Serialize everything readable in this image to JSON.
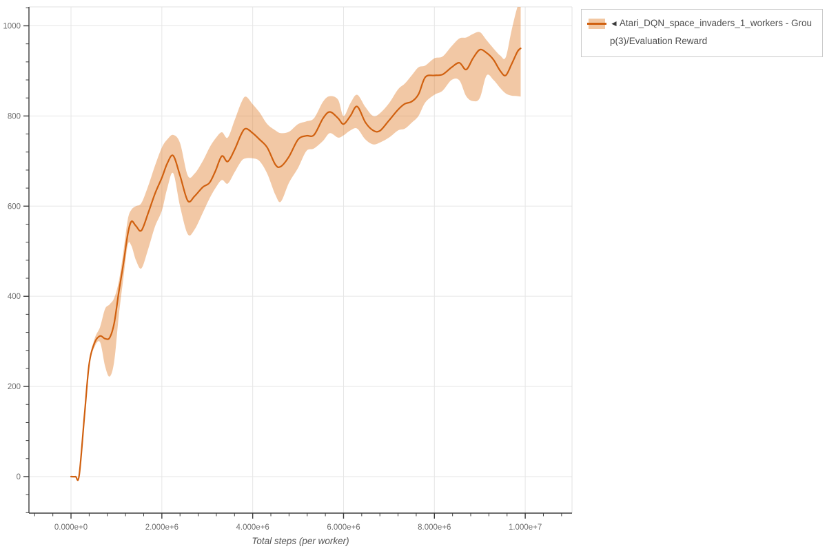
{
  "page": {
    "background": "#ffffff"
  },
  "legend": {
    "marker_icon": "◄",
    "label": "Atari_DQN_space_invaders_1_workers - Group(3)/Evaluation Reward",
    "band_color": "#f2c7a2",
    "line_color": "#d0600f",
    "border_color": "#c9c9c9"
  },
  "chart_data": {
    "type": "line",
    "title": "",
    "xlabel": "Total steps (per worker)",
    "ylabel": "",
    "grid": true,
    "legend_position": "top-right",
    "x_range": [
      -926000,
      11030000
    ],
    "y_range": [
      -81,
      1042
    ],
    "x_ticks": {
      "values": [
        0,
        2000000,
        4000000,
        6000000,
        8000000,
        10000000
      ],
      "labels": [
        "0.000e+0",
        "2.000e+6",
        "4.000e+6",
        "6.000e+6",
        "8.000e+6",
        "1.000e+7"
      ]
    },
    "x_minor_step": 400000,
    "y_ticks": {
      "values": [
        0,
        200,
        400,
        600,
        800,
        1000
      ],
      "labels": [
        "0",
        "200",
        "400",
        "600",
        "800",
        "1000"
      ]
    },
    "y_minor_step": 40,
    "colors": {
      "gridline": "#e6e6e6",
      "plot_border": "#e0e0e0",
      "axis": "#3b3b3b",
      "tick_label": "#6e6e6e",
      "axis_title": "#555555"
    },
    "series": [
      {
        "name": "Atari_DQN_space_invaders_1_workers - Group(3)/Evaluation Reward",
        "line_color": "#d0600f",
        "band_fill": "#e07b28",
        "band_opacity": 0.42,
        "points_format": [
          "step",
          "mean",
          "lo",
          "hi"
        ],
        "points": [
          [
            0,
            0,
            0,
            0
          ],
          [
            100000,
            0,
            0,
            0
          ],
          [
            180000,
            3,
            3,
            3
          ],
          [
            300000,
            140,
            140,
            140
          ],
          [
            400000,
            250,
            246,
            254
          ],
          [
            520000,
            297,
            288,
            306
          ],
          [
            640000,
            312,
            298,
            332
          ],
          [
            750000,
            306,
            245,
            372
          ],
          [
            850000,
            308,
            222,
            382
          ],
          [
            950000,
            340,
            255,
            396
          ],
          [
            1050000,
            408,
            355,
            432
          ],
          [
            1150000,
            470,
            438,
            496
          ],
          [
            1250000,
            538,
            514,
            570
          ],
          [
            1330000,
            566,
            512,
            592
          ],
          [
            1430000,
            556,
            480,
            600
          ],
          [
            1550000,
            546,
            462,
            607
          ],
          [
            1700000,
            585,
            505,
            645
          ],
          [
            1850000,
            628,
            555,
            690
          ],
          [
            2000000,
            663,
            590,
            730
          ],
          [
            2120000,
            695,
            640,
            748
          ],
          [
            2250000,
            712,
            673,
            758
          ],
          [
            2400000,
            668,
            600,
            740
          ],
          [
            2570000,
            612,
            538,
            668
          ],
          [
            2720000,
            622,
            548,
            672
          ],
          [
            2900000,
            642,
            585,
            700
          ],
          [
            3050000,
            652,
            617,
            730
          ],
          [
            3180000,
            678,
            640,
            750
          ],
          [
            3320000,
            711,
            658,
            764
          ],
          [
            3450000,
            699,
            650,
            752
          ],
          [
            3600000,
            725,
            675,
            790
          ],
          [
            3750000,
            760,
            700,
            830
          ],
          [
            3850000,
            772,
            706,
            843
          ],
          [
            4000000,
            762,
            706,
            826
          ],
          [
            4150000,
            748,
            700,
            808
          ],
          [
            4320000,
            730,
            672,
            782
          ],
          [
            4500000,
            692,
            625,
            768
          ],
          [
            4620000,
            688,
            610,
            762
          ],
          [
            4800000,
            710,
            652,
            765
          ],
          [
            5000000,
            748,
            685,
            782
          ],
          [
            5180000,
            756,
            722,
            788
          ],
          [
            5350000,
            758,
            728,
            795
          ],
          [
            5550000,
            795,
            745,
            832
          ],
          [
            5700000,
            809,
            762,
            844
          ],
          [
            5880000,
            795,
            752,
            836
          ],
          [
            6000000,
            782,
            757,
            800
          ],
          [
            6150000,
            800,
            768,
            828
          ],
          [
            6300000,
            821,
            772,
            847
          ],
          [
            6480000,
            786,
            748,
            820
          ],
          [
            6650000,
            768,
            737,
            800
          ],
          [
            6800000,
            767,
            741,
            806
          ],
          [
            7000000,
            790,
            752,
            828
          ],
          [
            7200000,
            814,
            768,
            859
          ],
          [
            7350000,
            827,
            772,
            872
          ],
          [
            7500000,
            832,
            785,
            890
          ],
          [
            7650000,
            848,
            800,
            908
          ],
          [
            7800000,
            886,
            830,
            912
          ],
          [
            8000000,
            890,
            847,
            928
          ],
          [
            8180000,
            892,
            856,
            932
          ],
          [
            8380000,
            908,
            880,
            955
          ],
          [
            8550000,
            918,
            879,
            972
          ],
          [
            8700000,
            903,
            844,
            974
          ],
          [
            8850000,
            928,
            833,
            982
          ],
          [
            9000000,
            947,
            840,
            986
          ],
          [
            9150000,
            940,
            890,
            968
          ],
          [
            9300000,
            925,
            880,
            950
          ],
          [
            9450000,
            900,
            862,
            934
          ],
          [
            9570000,
            890,
            850,
            930
          ],
          [
            9700000,
            915,
            845,
            990
          ],
          [
            9830000,
            943,
            844,
            1042
          ],
          [
            9900000,
            950,
            843,
            1048
          ]
        ]
      }
    ]
  }
}
